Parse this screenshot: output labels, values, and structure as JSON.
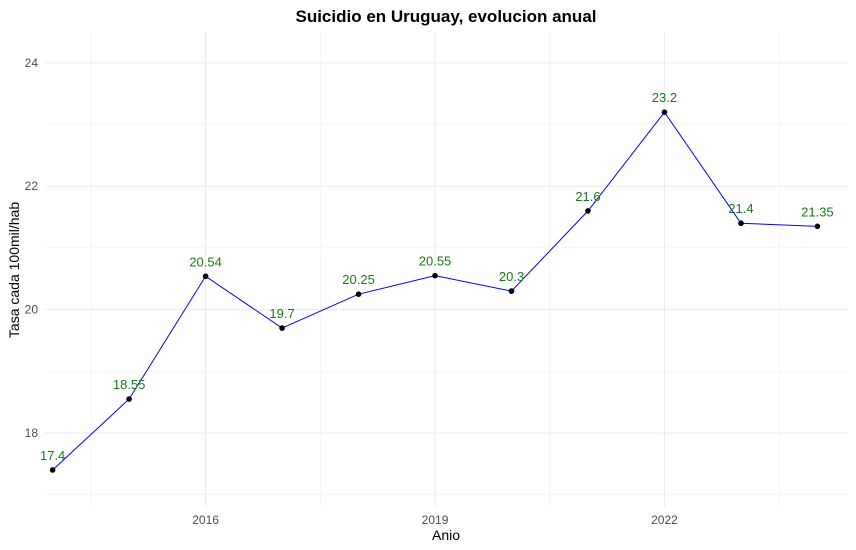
{
  "chart_data": {
    "type": "line",
    "title": "Suicidio en Uruguay, evolucion anual",
    "xlabel": "Anio",
    "ylabel": "Tasa cada 100mil/hab",
    "x": [
      2014,
      2015,
      2016,
      2017,
      2018,
      2019,
      2020,
      2021,
      2022,
      2023,
      2024
    ],
    "series": [
      {
        "values": [
          17.4,
          18.55,
          20.54,
          19.7,
          20.25,
          20.55,
          20.3,
          21.6,
          23.2,
          21.4,
          21.35
        ]
      }
    ],
    "data_labels": [
      "17.4",
      "18.55",
      "20.54",
      "19.7",
      "20.25",
      "20.55",
      "20.3",
      "21.6",
      "23.2",
      "21.4",
      "21.35"
    ],
    "x_ticks": [
      2016,
      2019,
      2022
    ],
    "y_ticks": [
      18,
      20,
      22,
      24
    ],
    "xlim": [
      2013.9,
      2024.4
    ],
    "ylim": [
      16.8,
      24.5
    ],
    "grid": true,
    "colors": {
      "line": "#0000ff",
      "point": "#000000",
      "label": "#1a7a1a",
      "grid": "#ebebeb"
    }
  }
}
